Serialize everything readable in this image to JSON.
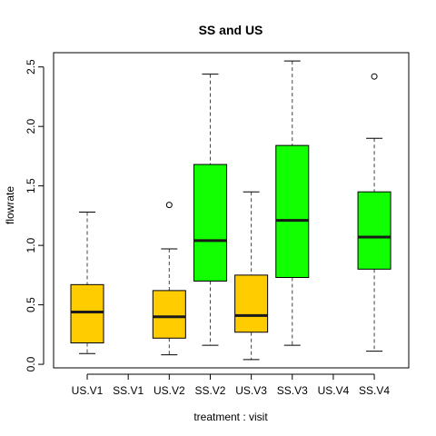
{
  "chart_data": {
    "type": "box",
    "title": "SS and US",
    "xlabel": "treatment : visit",
    "ylabel": "flowrate",
    "ylim": [
      -0.03,
      2.62
    ],
    "yticks": [
      0.0,
      0.5,
      1.0,
      1.5,
      2.0,
      2.5
    ],
    "ytick_labels": [
      "0.0",
      "0.5",
      "1.0",
      "1.5",
      "2.0",
      "2.5"
    ],
    "grid": false,
    "legend": "none",
    "colors": {
      "US": "#ffcc00",
      "SS": "#11ff00",
      "median": "#1a1a1a",
      "whisker": "#444444"
    },
    "categories": [
      "US.V1",
      "SS.V1",
      "US.V2",
      "SS.V2",
      "US.V3",
      "SS.V3",
      "US.V4",
      "SS.V4"
    ],
    "groups": [
      "US",
      "SS",
      "US",
      "SS",
      "US",
      "SS",
      "US",
      "SS"
    ],
    "boxes": [
      {
        "min": 0.09,
        "q1": 0.18,
        "median": 0.44,
        "q3": 0.67,
        "max": 1.28,
        "outliers": []
      },
      null,
      {
        "min": 0.08,
        "q1": 0.22,
        "median": 0.4,
        "q3": 0.62,
        "max": 0.97,
        "outliers": [
          1.34
        ]
      },
      {
        "min": 0.16,
        "q1": 0.7,
        "median": 1.04,
        "q3": 1.68,
        "max": 2.44,
        "outliers": []
      },
      {
        "min": 0.04,
        "q1": 0.27,
        "median": 0.41,
        "q3": 0.75,
        "max": 1.45,
        "outliers": []
      },
      {
        "min": 0.16,
        "q1": 0.73,
        "median": 1.21,
        "q3": 1.84,
        "max": 2.55,
        "outliers": []
      },
      null,
      {
        "min": 0.11,
        "q1": 0.8,
        "median": 1.07,
        "q3": 1.45,
        "max": 1.9,
        "outliers": [
          2.42
        ]
      }
    ]
  }
}
